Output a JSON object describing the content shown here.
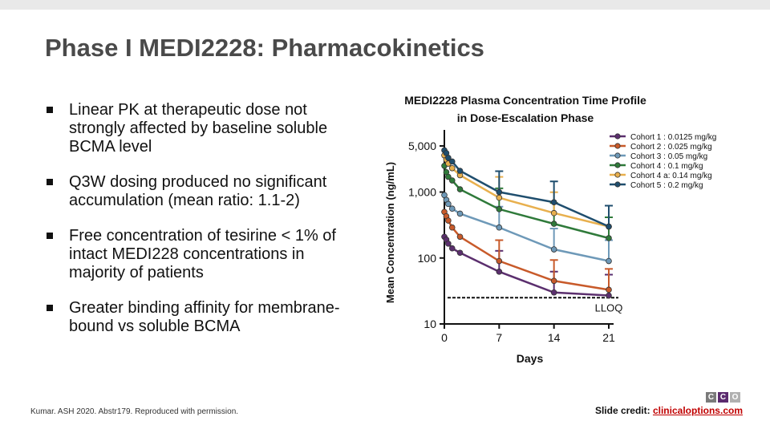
{
  "slide": {
    "title": "Phase I MEDI2228: Pharmacokinetics",
    "bullets": [
      "Linear PK at therapeutic dose not strongly affected by baseline soluble BCMA level",
      "Q3W dosing produced no significant accumulation (mean ratio: 1.1-2)",
      "Free concentration of tesirine < 1% of intact MEDI228 concentrations in majority of patients",
      "Greater binding affinity for membrane-bound vs soluble BCMA"
    ],
    "footer_reference": "Kumar. ASH 2020. Abstr179. Reproduced with permission.",
    "credit_label": "Slide credit: ",
    "credit_link": "clinicaloptions.com",
    "logo_letters": [
      "C",
      "C",
      "O"
    ]
  },
  "colors": {
    "bullet_text": "#111111",
    "title_text": "#4a4a4a",
    "credit_link": "#c00000",
    "logo": [
      "#7a7a7a",
      "#5b2a6e",
      "#b0b0b0"
    ]
  },
  "chart_data": {
    "type": "line",
    "title": "MEDI2228 Plasma Concentration Time Profile in Dose-Escalation Phase",
    "xlabel": "Days",
    "ylabel": "Mean Concentration (ng/mL)",
    "xlim": [
      0,
      21
    ],
    "ylim": [
      10,
      7000
    ],
    "yscale": "log",
    "xticks": [
      0,
      7,
      14,
      21
    ],
    "xtick_labels": [
      "0",
      "7",
      "14",
      "21"
    ],
    "yticks": [
      10,
      100,
      1000,
      5000
    ],
    "ytick_labels": [
      "10",
      "100",
      "1,000",
      "5,000"
    ],
    "reference_line": {
      "label": "LLOQ",
      "y": 25
    },
    "legend_position": "top-right",
    "series": [
      {
        "name": "Cohort 1 : 0.0125 mg/kg",
        "color": "#5b2f6e",
        "x": [
          0,
          0.25,
          0.5,
          1,
          2,
          7,
          14,
          21
        ],
        "y": [
          210,
          190,
          165,
          140,
          120,
          62,
          30,
          27
        ]
      },
      {
        "name": "Cohort 2 : 0.025 mg/kg",
        "color": "#c85a2a",
        "x": [
          0,
          0.25,
          0.5,
          1,
          2,
          7,
          14,
          21
        ],
        "y": [
          500,
          430,
          370,
          290,
          210,
          90,
          45,
          33
        ]
      },
      {
        "name": "Cohort 3 : 0.05 mg/kg",
        "color": "#6e99b8",
        "x": [
          0,
          0.25,
          0.5,
          1,
          2,
          7,
          14,
          21
        ],
        "y": [
          900,
          760,
          660,
          560,
          470,
          290,
          135,
          90
        ]
      },
      {
        "name": "Cohort 4 : 0.1 mg/kg",
        "color": "#2f7a3a",
        "x": [
          0,
          0.25,
          0.5,
          1,
          2,
          7,
          14,
          21
        ],
        "y": [
          2500,
          2000,
          1700,
          1500,
          1100,
          550,
          330,
          200
        ]
      },
      {
        "name": "Cohort 4 a: 0.14 mg/kg",
        "color": "#e8b04e",
        "x": [
          0,
          0.25,
          0.5,
          1,
          2,
          7,
          14,
          21
        ],
        "y": [
          3600,
          3100,
          2700,
          2300,
          1800,
          820,
          480,
          300
        ]
      },
      {
        "name": "Cohort 5 : 0.2 mg/kg",
        "color": "#1f4e6e",
        "x": [
          0,
          0.25,
          0.5,
          1,
          2,
          7,
          14,
          21
        ],
        "y": [
          4300,
          3900,
          3300,
          2900,
          2100,
          1000,
          700,
          300
        ]
      }
    ]
  }
}
